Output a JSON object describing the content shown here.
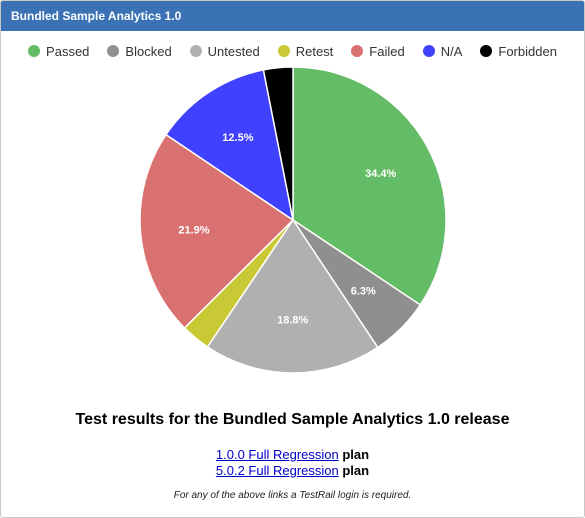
{
  "header": {
    "title": "Bundled Sample Analytics 1.0"
  },
  "chart_data": {
    "type": "pie",
    "categories": [
      "Passed",
      "Blocked",
      "Untested",
      "Retest",
      "Failed",
      "N/A",
      "Forbidden"
    ],
    "values": [
      34.4,
      6.3,
      18.8,
      3.1,
      21.9,
      12.5,
      3.1
    ],
    "colors": [
      "#65bc66",
      "#8f8f8f",
      "#b0b0b0",
      "#c9c935",
      "#da7171",
      "#4040ff",
      "#000000"
    ],
    "data_labels": [
      "34.4%",
      "6.3%",
      "18.8%",
      "",
      "21.9%",
      "12.5%",
      ""
    ],
    "legend": "top"
  },
  "report": {
    "title": "Test results for the Bundled Sample Analytics 1.0 release",
    "links": [
      {
        "text": "1.0.0 Full Regression",
        "suffix": "plan"
      },
      {
        "text": "5.0.2 Full Regression",
        "suffix": "plan"
      }
    ],
    "note": "For any of the above links a TestRail login is required."
  }
}
